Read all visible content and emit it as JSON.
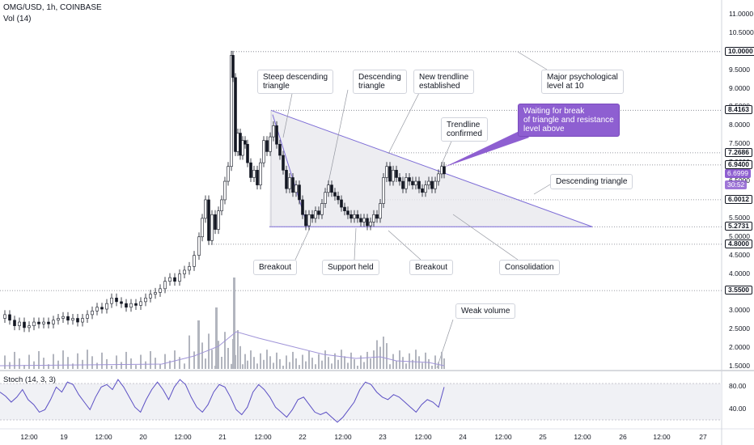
{
  "header": {
    "title": "OMG/USD, 1h, COINBASE",
    "volume_label": "Vol (14)",
    "stoch_label": "Stoch (14, 3, 3)"
  },
  "chart_data": [
    {
      "type": "candlestick",
      "title": "OMG/USD, 1h, COINBASE",
      "x_tick_labels": [
        "12:00",
        "19",
        "12:00",
        "20",
        "12:00",
        "21",
        "12:00",
        "22",
        "12:00",
        "23",
        "12:00",
        "24",
        "12:00",
        "25",
        "12:00",
        "26",
        "12:00",
        "27"
      ],
      "y_tick_labels": [
        "1.5000",
        "2.0000",
        "2.5000",
        "3.0000",
        "3.5000",
        "4.0000",
        "4.5000",
        "5.0000",
        "5.5000",
        "6.0000",
        "6.5000",
        "7.0000",
        "7.5000",
        "8.0000",
        "8.5000",
        "9.0000",
        "9.5000",
        "10.0000",
        "10.5000",
        "11.0000"
      ],
      "ylim": [
        1.2,
        11.3
      ],
      "price_levels": [
        {
          "label": "10.0000",
          "value": 10.0,
          "color": "#131722"
        },
        {
          "label": "8.4163",
          "value": 8.4163,
          "color": "#131722"
        },
        {
          "label": "7.2686",
          "value": 7.2686,
          "color": "#131722"
        },
        {
          "label": "6.9400",
          "value": 6.94,
          "color": "#131722"
        },
        {
          "label": "6.6999",
          "value": 6.6999,
          "color": "#8e5fd1"
        },
        {
          "label": "6.0012",
          "value": 6.0012,
          "color": "#131722"
        },
        {
          "label": "5.2731",
          "value": 5.2731,
          "color": "#131722"
        },
        {
          "label": "4.8000",
          "value": 4.8,
          "color": "#131722"
        },
        {
          "label": "3.5500",
          "value": 3.55,
          "color": "#131722"
        }
      ],
      "countdown_label": "30:52",
      "annotations": [
        {
          "text": "Steep descending\ntriangle",
          "style": "plain"
        },
        {
          "text": "Descending\ntriangle",
          "style": "plain"
        },
        {
          "text": "New trendline\nestablished",
          "style": "plain"
        },
        {
          "text": "Major psychological\nlevel at 10",
          "style": "plain"
        },
        {
          "text": "Trendline\nconfirmed",
          "style": "plain"
        },
        {
          "text": "Waiting for break\nof triangle and resistance\nlevel above",
          "style": "purple"
        },
        {
          "text": "Descending triangle",
          "style": "plain"
        },
        {
          "text": "Breakout",
          "style": "plain"
        },
        {
          "text": "Support held",
          "style": "plain"
        },
        {
          "text": "Breakout",
          "style": "plain"
        },
        {
          "text": "Consolidation",
          "style": "plain"
        },
        {
          "text": "Weak volume",
          "style": "plain"
        }
      ],
      "candles_close_path": [
        [
          0,
          2.8
        ],
        [
          6,
          2.9
        ],
        [
          12,
          2.75
        ],
        [
          18,
          2.6
        ],
        [
          24,
          2.7
        ],
        [
          30,
          2.55
        ],
        [
          36,
          2.6
        ],
        [
          42,
          2.7
        ],
        [
          48,
          2.65
        ],
        [
          54,
          2.7
        ],
        [
          60,
          2.65
        ],
        [
          66,
          2.75
        ],
        [
          72,
          2.8
        ],
        [
          78,
          2.85
        ],
        [
          84,
          2.75
        ],
        [
          90,
          2.8
        ],
        [
          96,
          2.7
        ],
        [
          102,
          2.8
        ],
        [
          108,
          2.9
        ],
        [
          114,
          3.0
        ],
        [
          120,
          3.1
        ],
        [
          126,
          3.05
        ],
        [
          132,
          3.2
        ],
        [
          138,
          3.35
        ],
        [
          144,
          3.25
        ],
        [
          150,
          3.2
        ],
        [
          156,
          3.1
        ],
        [
          162,
          3.2
        ],
        [
          168,
          3.15
        ],
        [
          174,
          3.25
        ],
        [
          180,
          3.35
        ],
        [
          186,
          3.45
        ],
        [
          192,
          3.5
        ],
        [
          198,
          3.6
        ],
        [
          204,
          3.8
        ],
        [
          210,
          3.9
        ],
        [
          216,
          3.8
        ],
        [
          222,
          4.0
        ],
        [
          228,
          4.1
        ],
        [
          234,
          4.2
        ],
        [
          240,
          4.5
        ],
        [
          246,
          5.0
        ],
        [
          250,
          5.5
        ],
        [
          254,
          6.0
        ],
        [
          258,
          4.9
        ],
        [
          262,
          5.6
        ],
        [
          266,
          5.2
        ],
        [
          270,
          5.7
        ],
        [
          274,
          6.0
        ],
        [
          278,
          6.5
        ],
        [
          282,
          6.9
        ],
        [
          286,
          9.9
        ],
        [
          288,
          9.3
        ],
        [
          291,
          7.3
        ],
        [
          294,
          7.8
        ],
        [
          297,
          7.2
        ],
        [
          300,
          7.6
        ],
        [
          303,
          7.5
        ],
        [
          306,
          7.0
        ],
        [
          310,
          6.6
        ],
        [
          314,
          6.8
        ],
        [
          318,
          6.4
        ],
        [
          322,
          7.0
        ],
        [
          326,
          7.6
        ],
        [
          330,
          7.3
        ],
        [
          334,
          7.7
        ],
        [
          338,
          8.0
        ],
        [
          342,
          7.5
        ],
        [
          346,
          7.2
        ],
        [
          350,
          6.8
        ],
        [
          354,
          6.3
        ],
        [
          358,
          6.6
        ],
        [
          362,
          6.2
        ],
        [
          366,
          6.4
        ],
        [
          370,
          6.0
        ],
        [
          374,
          5.6
        ],
        [
          378,
          5.3
        ],
        [
          382,
          5.6
        ],
        [
          386,
          5.5
        ],
        [
          390,
          5.7
        ],
        [
          394,
          5.6
        ],
        [
          398,
          5.9
        ],
        [
          402,
          6.2
        ],
        [
          406,
          6.4
        ],
        [
          410,
          6.2
        ],
        [
          414,
          6.1
        ],
        [
          418,
          6.0
        ],
        [
          422,
          5.8
        ],
        [
          426,
          5.7
        ],
        [
          430,
          5.6
        ],
        [
          434,
          5.5
        ],
        [
          438,
          5.6
        ],
        [
          442,
          5.5
        ],
        [
          446,
          5.4
        ],
        [
          450,
          5.5
        ],
        [
          454,
          5.3
        ],
        [
          458,
          5.4
        ],
        [
          462,
          5.6
        ],
        [
          466,
          5.5
        ],
        [
          470,
          5.9
        ],
        [
          474,
          6.6
        ],
        [
          478,
          6.9
        ],
        [
          482,
          6.5
        ],
        [
          486,
          6.8
        ],
        [
          490,
          6.6
        ],
        [
          494,
          6.5
        ],
        [
          498,
          6.3
        ],
        [
          502,
          6.6
        ],
        [
          506,
          6.5
        ],
        [
          510,
          6.4
        ],
        [
          514,
          6.5
        ],
        [
          518,
          6.3
        ],
        [
          522,
          6.2
        ],
        [
          526,
          6.4
        ],
        [
          530,
          6.5
        ],
        [
          534,
          6.3
        ],
        [
          538,
          6.5
        ],
        [
          542,
          6.7
        ],
        [
          546,
          6.9
        ],
        [
          549,
          6.7
        ]
      ]
    },
    {
      "type": "bar",
      "title": "Vol (14)",
      "description_series": "volume with moving average"
    },
    {
      "type": "line",
      "title": "Stoch (14, 3, 3)",
      "y_tick_labels": [
        "80.00",
        "40.00"
      ],
      "ylim": [
        0,
        100
      ],
      "band": [
        20,
        80
      ]
    }
  ],
  "colors": {
    "bull": "#131722",
    "bear": "#131722",
    "triangle_line": "#7c6bd6",
    "triangle_fill": "#e9e9ee",
    "accent": "#8e5fd1",
    "grid": "#e0e3eb",
    "volume_bar": "#b2b5be",
    "volume_ma": "#a094d8",
    "stoch_line": "#5b4fc4"
  }
}
